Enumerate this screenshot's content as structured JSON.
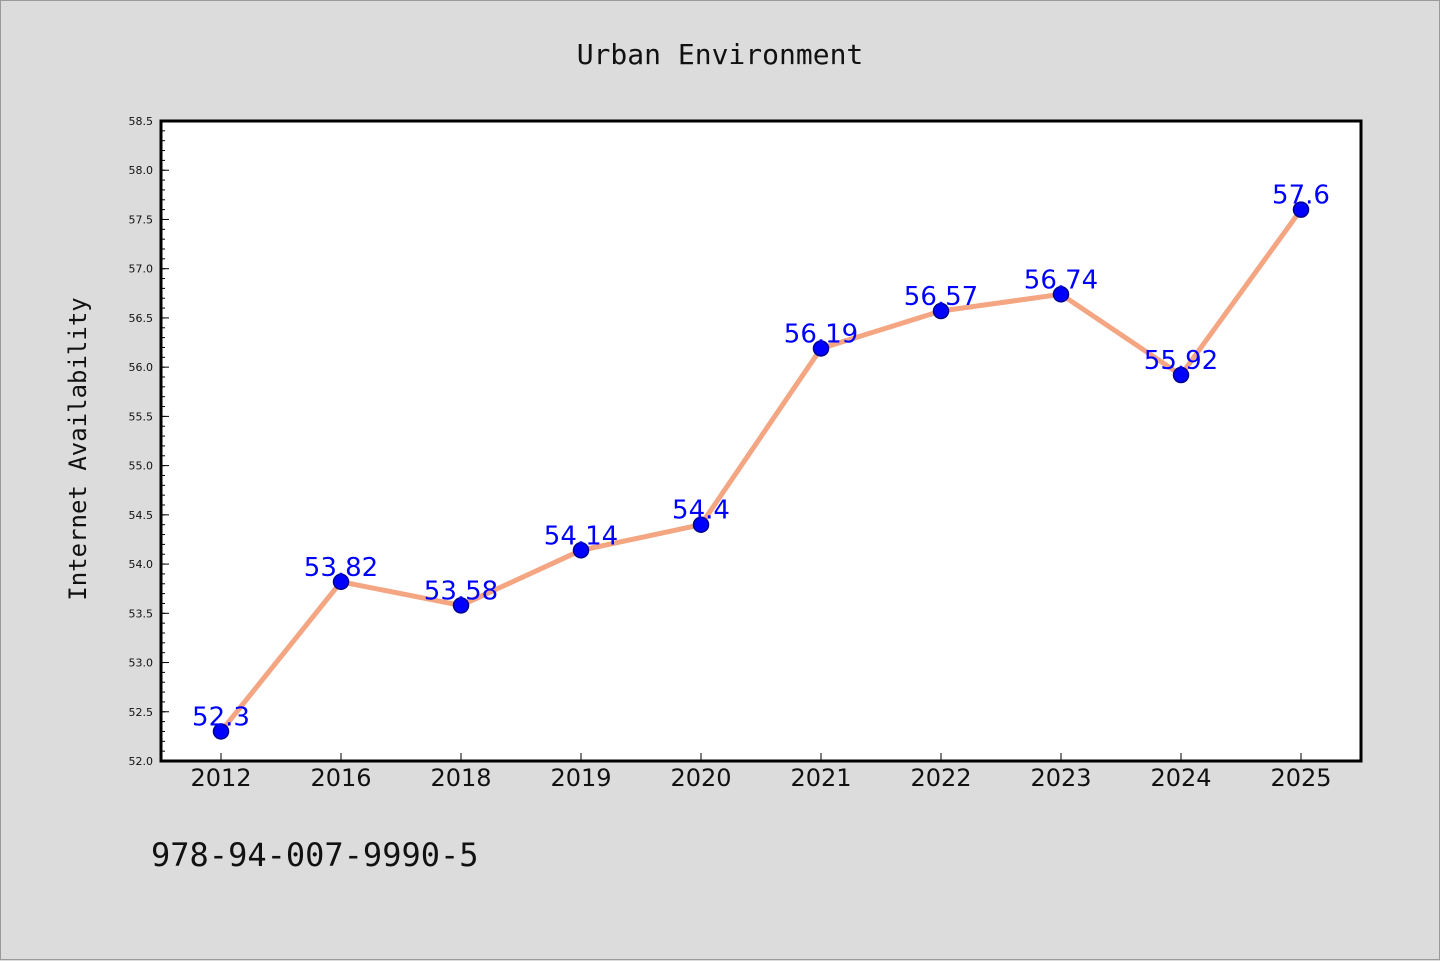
{
  "chart_data": {
    "type": "line",
    "title": "Urban Environment",
    "ylabel": "Internet Availability",
    "xlabel": "",
    "categories": [
      "2012",
      "2016",
      "2018",
      "2019",
      "2020",
      "2021",
      "2022",
      "2023",
      "2024",
      "2025"
    ],
    "values": [
      52.3,
      53.82,
      53.58,
      54.14,
      54.4,
      56.19,
      56.57,
      56.74,
      55.92,
      57.6
    ],
    "data_labels": [
      "52.3",
      "53.82",
      "53.58",
      "54.14",
      "54.4",
      "56.19",
      "56.57",
      "56.74",
      "55.92",
      "57.6"
    ],
    "yticks": [
      "52.0",
      "52.5",
      "53.0",
      "53.5",
      "54.0",
      "54.5",
      "55.0",
      "55.5",
      "56.0",
      "56.5",
      "57.0",
      "57.5",
      "58.0",
      "58.5"
    ],
    "ylim": [
      52.0,
      58.5
    ],
    "grid": false,
    "legend": "none",
    "colors": {
      "line": "#f4a582",
      "marker": "#0000ff",
      "marker_edge": "#00008b",
      "label": "#0000ff",
      "background": "#dcdcdc",
      "plot_background": "#ffffff"
    }
  },
  "footer": {
    "isbn": "978-94-007-9990-5"
  }
}
